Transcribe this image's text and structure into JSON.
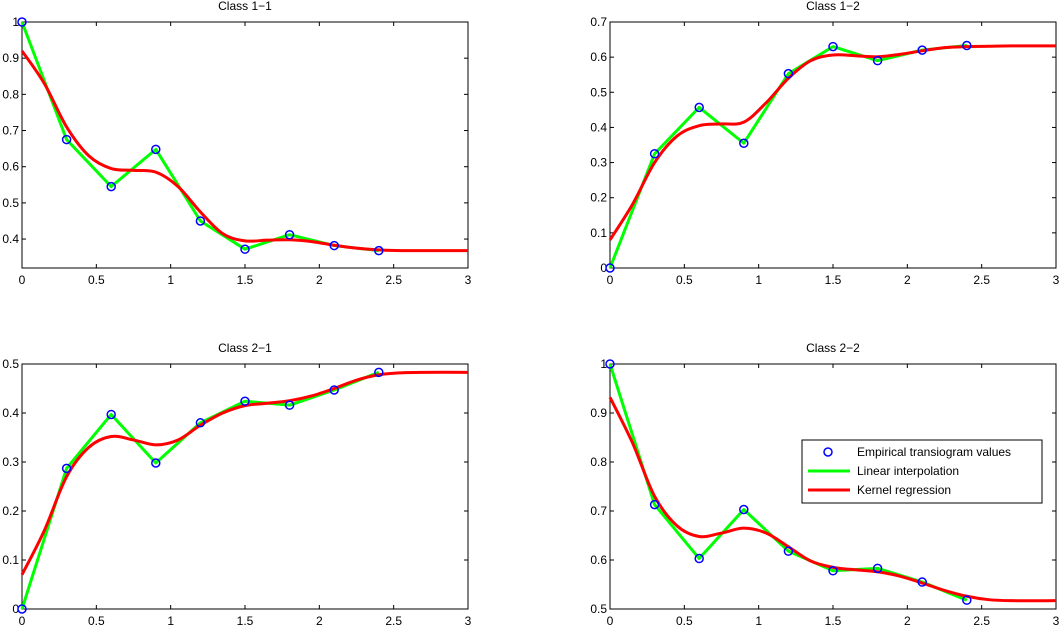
{
  "chart_data": [
    {
      "type": "line",
      "title": "Class 1−1",
      "xlim": [
        0,
        3
      ],
      "ylim": [
        0.32,
        1.0
      ],
      "xticks": [
        0,
        0.5,
        1,
        1.5,
        2,
        2.5,
        3
      ],
      "xtick_labels": [
        "0",
        "0.5",
        "1",
        "1.5",
        "2",
        "2.5",
        "3"
      ],
      "yticks": [
        0.4,
        0.5,
        0.6,
        0.7,
        0.8,
        0.9,
        1.0
      ],
      "ytick_labels": [
        "0.4",
        "0.5",
        "0.6",
        "0.7",
        "0.8",
        "0.9",
        "1"
      ],
      "empirical": {
        "x": [
          0,
          0.3,
          0.6,
          0.9,
          1.2,
          1.5,
          1.8,
          2.1,
          2.4
        ],
        "y": [
          1.0,
          0.675,
          0.545,
          0.648,
          0.45,
          0.372,
          0.412,
          0.382,
          0.368
        ]
      },
      "kernel": {
        "x": [
          0,
          0.15,
          0.3,
          0.45,
          0.6,
          0.75,
          0.9,
          1.05,
          1.2,
          1.35,
          1.5,
          1.65,
          1.8,
          1.95,
          2.1,
          2.25,
          2.4,
          2.55,
          2.7,
          3.0
        ],
        "y": [
          0.92,
          0.83,
          0.71,
          0.63,
          0.595,
          0.59,
          0.585,
          0.545,
          0.475,
          0.415,
          0.395,
          0.397,
          0.398,
          0.393,
          0.383,
          0.375,
          0.37,
          0.368,
          0.368,
          0.368
        ]
      }
    },
    {
      "type": "line",
      "title": "Class 1−2",
      "xlim": [
        0,
        3
      ],
      "ylim": [
        0,
        0.7
      ],
      "xticks": [
        0,
        0.5,
        1,
        1.5,
        2,
        2.5,
        3
      ],
      "xtick_labels": [
        "0",
        "0.5",
        "1",
        "1.5",
        "2",
        "2.5",
        "3"
      ],
      "yticks": [
        0,
        0.1,
        0.2,
        0.3,
        0.4,
        0.5,
        0.6,
        0.7
      ],
      "ytick_labels": [
        "0",
        "0.1",
        "0.2",
        "0.3",
        "0.4",
        "0.5",
        "0.6",
        "0.7"
      ],
      "empirical": {
        "x": [
          0,
          0.3,
          0.6,
          0.9,
          1.2,
          1.5,
          1.8,
          2.1,
          2.4
        ],
        "y": [
          0,
          0.325,
          0.457,
          0.355,
          0.553,
          0.63,
          0.59,
          0.62,
          0.633
        ]
      },
      "kernel": {
        "x": [
          0,
          0.15,
          0.3,
          0.45,
          0.6,
          0.75,
          0.9,
          1.05,
          1.2,
          1.35,
          1.5,
          1.65,
          1.8,
          1.95,
          2.1,
          2.25,
          2.4,
          2.55,
          2.7,
          3.0
        ],
        "y": [
          0.08,
          0.18,
          0.3,
          0.375,
          0.405,
          0.41,
          0.415,
          0.47,
          0.54,
          0.59,
          0.606,
          0.604,
          0.601,
          0.608,
          0.618,
          0.627,
          0.63,
          0.631,
          0.632,
          0.632
        ]
      }
    },
    {
      "type": "line",
      "title": "Class 2−1",
      "xlim": [
        0,
        3
      ],
      "ylim": [
        0,
        0.5
      ],
      "xticks": [
        0,
        0.5,
        1,
        1.5,
        2,
        2.5,
        3
      ],
      "xtick_labels": [
        "0",
        "0.5",
        "1",
        "1.5",
        "2",
        "2.5",
        "3"
      ],
      "yticks": [
        0,
        0.1,
        0.2,
        0.3,
        0.4,
        0.5
      ],
      "ytick_labels": [
        "0",
        "0.1",
        "0.2",
        "0.3",
        "0.4",
        "0.5"
      ],
      "empirical": {
        "x": [
          0,
          0.3,
          0.6,
          0.9,
          1.2,
          1.5,
          1.8,
          2.1,
          2.4
        ],
        "y": [
          0,
          0.287,
          0.397,
          0.298,
          0.38,
          0.424,
          0.416,
          0.447,
          0.483
        ]
      },
      "kernel": {
        "x": [
          0,
          0.15,
          0.3,
          0.45,
          0.6,
          0.75,
          0.9,
          1.05,
          1.2,
          1.35,
          1.5,
          1.65,
          1.8,
          1.95,
          2.1,
          2.25,
          2.4,
          2.55,
          2.7,
          3.0
        ],
        "y": [
          0.07,
          0.16,
          0.27,
          0.33,
          0.352,
          0.345,
          0.335,
          0.345,
          0.375,
          0.4,
          0.415,
          0.42,
          0.425,
          0.435,
          0.45,
          0.467,
          0.478,
          0.482,
          0.483,
          0.483
        ]
      }
    },
    {
      "type": "line",
      "title": "Class 2−2",
      "xlim": [
        0,
        3
      ],
      "ylim": [
        0.5,
        1.0
      ],
      "xticks": [
        0,
        0.5,
        1,
        1.5,
        2,
        2.5,
        3
      ],
      "xtick_labels": [
        "0",
        "0.5",
        "1",
        "1.5",
        "2",
        "2.5",
        "3"
      ],
      "yticks": [
        0.5,
        0.6,
        0.7,
        0.8,
        0.9,
        1.0
      ],
      "ytick_labels": [
        "0.5",
        "0.6",
        "0.7",
        "0.8",
        "0.9",
        "1"
      ],
      "empirical": {
        "x": [
          0,
          0.3,
          0.6,
          0.9,
          1.2,
          1.5,
          1.8,
          2.1,
          2.4
        ],
        "y": [
          1.0,
          0.713,
          0.603,
          0.703,
          0.618,
          0.578,
          0.583,
          0.555,
          0.518
        ]
      },
      "kernel": {
        "x": [
          0,
          0.15,
          0.3,
          0.45,
          0.6,
          0.75,
          0.9,
          1.05,
          1.2,
          1.35,
          1.5,
          1.65,
          1.8,
          1.95,
          2.1,
          2.25,
          2.4,
          2.55,
          2.7,
          3.0
        ],
        "y": [
          0.932,
          0.84,
          0.73,
          0.67,
          0.648,
          0.655,
          0.665,
          0.655,
          0.627,
          0.598,
          0.585,
          0.58,
          0.576,
          0.567,
          0.553,
          0.538,
          0.526,
          0.519,
          0.517,
          0.517
        ]
      }
    }
  ],
  "legend": {
    "items": [
      {
        "label": "Empirical transiogram values",
        "marker": "circle",
        "color": "#0000ff"
      },
      {
        "label": "Linear interpolation",
        "marker": "line",
        "color": "#00ff00"
      },
      {
        "label": "Kernel regression",
        "marker": "line",
        "color": "#ff0000"
      }
    ]
  },
  "colors": {
    "empirical": "#0000ff",
    "linear": "#00ff00",
    "kernel": "#ff0000",
    "axis": "#000000"
  }
}
